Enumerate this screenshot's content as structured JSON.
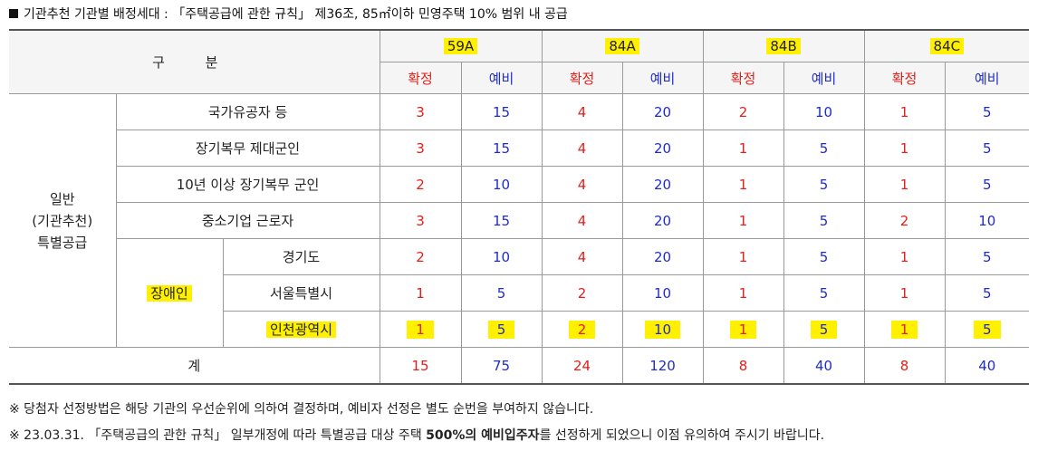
{
  "title": "기관추천 기관별 배정세대 : 「주택공급에 관한 규칙」 제36조, 85㎡이하 민영주택 10% 범위 내 공급",
  "header": {
    "gubun": "구 분",
    "types": [
      "59A",
      "84A",
      "84B",
      "84C"
    ],
    "confirmed": "확정",
    "reserve": "예비"
  },
  "group_label": "일반\n(기관추천)\n특별공급",
  "disabled_label": "장애인",
  "rows": [
    {
      "label": "국가유공자 등",
      "values": [
        "3",
        "15",
        "4",
        "20",
        "2",
        "10",
        "1",
        "5"
      ]
    },
    {
      "label": "장기복무 제대군인",
      "values": [
        "3",
        "15",
        "4",
        "20",
        "1",
        "5",
        "1",
        "5"
      ]
    },
    {
      "label": "10년 이상 장기복무 군인",
      "values": [
        "2",
        "10",
        "4",
        "20",
        "1",
        "5",
        "1",
        "5"
      ]
    },
    {
      "label": "중소기업 근로자",
      "values": [
        "3",
        "15",
        "4",
        "20",
        "1",
        "5",
        "2",
        "10"
      ]
    },
    {
      "label": "경기도",
      "values": [
        "2",
        "10",
        "4",
        "20",
        "1",
        "5",
        "1",
        "5"
      ]
    },
    {
      "label": "서울특별시",
      "values": [
        "1",
        "5",
        "2",
        "10",
        "1",
        "5",
        "1",
        "5"
      ]
    },
    {
      "label": "인천광역시",
      "values": [
        "1",
        "5",
        "2",
        "10",
        "1",
        "5",
        "1",
        "5"
      ]
    }
  ],
  "total": {
    "label": "계",
    "values": [
      "15",
      "75",
      "24",
      "120",
      "8",
      "40",
      "8",
      "40"
    ]
  },
  "notes": {
    "note1": "※ 당첨자 선정방법은 해당 기관의 우선순위에 의하여 결정하며, 예비자 선정은 별도 순번을 부여하지 않습니다.",
    "note2_a": "※ 23.03.31. 「주택공급의 관한 규칙」 일부개정에 따라 특별공급 대상 주택 ",
    "note2_b": "500%의 예비입주자",
    "note2_c": "를 선정하게 되었으니 이점 유의하여 주시기 바랍니다."
  },
  "colors": {
    "confirmed": "#e0201a",
    "reserve": "#1f2cc8",
    "highlight": "#fff000"
  }
}
